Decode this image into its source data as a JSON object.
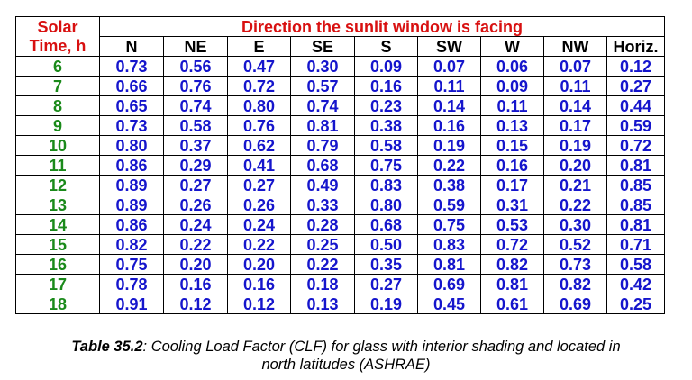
{
  "table": {
    "corner_line1": "Solar",
    "corner_line2": "Time, h",
    "group_header": "Direction the sunlit window is facing",
    "columns": [
      "N",
      "NE",
      "E",
      "SE",
      "S",
      "SW",
      "W",
      "NW",
      "Horiz."
    ],
    "rows": [
      {
        "time": "6",
        "values": [
          "0.73",
          "0.56",
          "0.47",
          "0.30",
          "0.09",
          "0.07",
          "0.06",
          "0.07",
          "0.12"
        ]
      },
      {
        "time": "7",
        "values": [
          "0.66",
          "0.76",
          "0.72",
          "0.57",
          "0.16",
          "0.11",
          "0.09",
          "0.11",
          "0.27"
        ]
      },
      {
        "time": "8",
        "values": [
          "0.65",
          "0.74",
          "0.80",
          "0.74",
          "0.23",
          "0.14",
          "0.11",
          "0.14",
          "0.44"
        ]
      },
      {
        "time": "9",
        "values": [
          "0.73",
          "0.58",
          "0.76",
          "0.81",
          "0.38",
          "0.16",
          "0.13",
          "0.17",
          "0.59"
        ]
      },
      {
        "time": "10",
        "values": [
          "0.80",
          "0.37",
          "0.62",
          "0.79",
          "0.58",
          "0.19",
          "0.15",
          "0.19",
          "0.72"
        ]
      },
      {
        "time": "11",
        "values": [
          "0.86",
          "0.29",
          "0.41",
          "0.68",
          "0.75",
          "0.22",
          "0.16",
          "0.20",
          "0.81"
        ]
      },
      {
        "time": "12",
        "values": [
          "0.89",
          "0.27",
          "0.27",
          "0.49",
          "0.83",
          "0.38",
          "0.17",
          "0.21",
          "0.85"
        ]
      },
      {
        "time": "13",
        "values": [
          "0.89",
          "0.26",
          "0.26",
          "0.33",
          "0.80",
          "0.59",
          "0.31",
          "0.22",
          "0.85"
        ]
      },
      {
        "time": "14",
        "values": [
          "0.86",
          "0.24",
          "0.24",
          "0.28",
          "0.68",
          "0.75",
          "0.53",
          "0.30",
          "0.81"
        ]
      },
      {
        "time": "15",
        "values": [
          "0.82",
          "0.22",
          "0.22",
          "0.25",
          "0.50",
          "0.83",
          "0.72",
          "0.52",
          "0.71"
        ]
      },
      {
        "time": "16",
        "values": [
          "0.75",
          "0.20",
          "0.20",
          "0.22",
          "0.35",
          "0.81",
          "0.82",
          "0.73",
          "0.58"
        ]
      },
      {
        "time": "17",
        "values": [
          "0.78",
          "0.16",
          "0.16",
          "0.18",
          "0.27",
          "0.69",
          "0.81",
          "0.82",
          "0.42"
        ]
      },
      {
        "time": "18",
        "values": [
          "0.91",
          "0.12",
          "0.12",
          "0.13",
          "0.19",
          "0.45",
          "0.61",
          "0.69",
          "0.25"
        ]
      }
    ]
  },
  "caption": {
    "label": "Table 35.2",
    "text_line1": ": Cooling Load Factor (CLF) for glass with interior shading and located in",
    "text_line2": "north latitudes (ASHRAE)"
  },
  "colors": {
    "header_red": "#d81010",
    "time_green": "#1a8a1a",
    "value_blue": "#1515cc",
    "column_header_black": "#000000"
  }
}
